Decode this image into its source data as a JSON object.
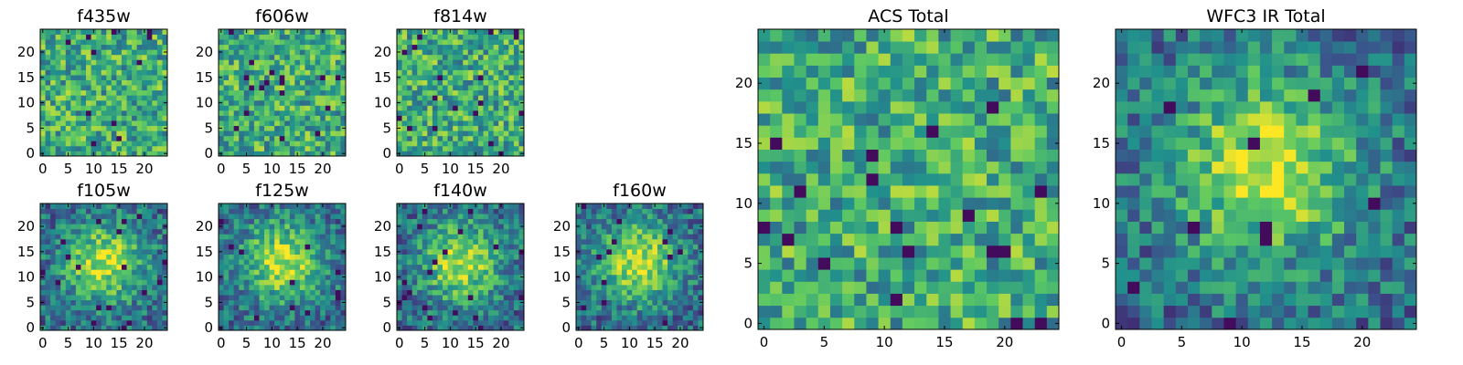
{
  "chart_data": [
    {
      "type": "heatmap",
      "title": "f435w",
      "grid": [
        25,
        25
      ],
      "seed": 11,
      "profile": "flat",
      "xlim": [
        0,
        24
      ],
      "ylim": [
        0,
        24
      ],
      "xticks": [
        "0",
        "5",
        "10",
        "15",
        "20"
      ],
      "yticks": [
        "0",
        "5",
        "10",
        "15",
        "20"
      ],
      "colormap": "viridis"
    },
    {
      "type": "heatmap",
      "title": "f606w",
      "grid": [
        25,
        25
      ],
      "seed": 23,
      "profile": "flat",
      "xlim": [
        0,
        24
      ],
      "ylim": [
        0,
        24
      ],
      "xticks": [
        "0",
        "5",
        "10",
        "15",
        "20"
      ],
      "yticks": [
        "0",
        "5",
        "10",
        "15",
        "20"
      ],
      "colormap": "viridis"
    },
    {
      "type": "heatmap",
      "title": "f814w",
      "grid": [
        25,
        25
      ],
      "seed": 37,
      "profile": "flat",
      "xlim": [
        0,
        24
      ],
      "ylim": [
        0,
        24
      ],
      "xticks": [
        "0",
        "5",
        "10",
        "15",
        "20"
      ],
      "yticks": [
        "0",
        "5",
        "10",
        "15",
        "20"
      ],
      "colormap": "viridis"
    },
    {
      "type": "heatmap",
      "title": "f105w",
      "grid": [
        25,
        25
      ],
      "seed": 41,
      "profile": "center",
      "xlim": [
        0,
        24
      ],
      "ylim": [
        0,
        24
      ],
      "xticks": [
        "0",
        "5",
        "10",
        "15",
        "20"
      ],
      "yticks": [
        "0",
        "5",
        "10",
        "15",
        "20"
      ],
      "colormap": "viridis"
    },
    {
      "type": "heatmap",
      "title": "f125w",
      "grid": [
        25,
        25
      ],
      "seed": 53,
      "profile": "center",
      "xlim": [
        0,
        24
      ],
      "ylim": [
        0,
        24
      ],
      "xticks": [
        "0",
        "5",
        "10",
        "15",
        "20"
      ],
      "yticks": [
        "0",
        "5",
        "10",
        "15",
        "20"
      ],
      "colormap": "viridis"
    },
    {
      "type": "heatmap",
      "title": "f140w",
      "grid": [
        25,
        25
      ],
      "seed": 67,
      "profile": "center",
      "xlim": [
        0,
        24
      ],
      "ylim": [
        0,
        24
      ],
      "xticks": [
        "0",
        "5",
        "10",
        "15",
        "20"
      ],
      "yticks": [
        "0",
        "5",
        "10",
        "15",
        "20"
      ],
      "colormap": "viridis"
    },
    {
      "type": "heatmap",
      "title": "f160w",
      "grid": [
        25,
        25
      ],
      "seed": 79,
      "profile": "center",
      "xlim": [
        0,
        24
      ],
      "ylim": [
        0,
        24
      ],
      "xticks": [
        "0",
        "5",
        "10",
        "15",
        "20"
      ],
      "yticks": [
        "0",
        "5",
        "10",
        "15",
        "20"
      ],
      "colormap": "viridis"
    },
    {
      "type": "heatmap",
      "title": "ACS Total",
      "grid": [
        25,
        25
      ],
      "seed": 83,
      "profile": "flat",
      "xlim": [
        0,
        24
      ],
      "ylim": [
        0,
        24
      ],
      "xticks": [
        "0",
        "5",
        "10",
        "15",
        "20"
      ],
      "yticks": [
        "0",
        "5",
        "10",
        "15",
        "20"
      ],
      "colormap": "viridis"
    },
    {
      "type": "heatmap",
      "title": "WFC3 IR Total",
      "grid": [
        25,
        25
      ],
      "seed": 97,
      "profile": "center",
      "xlim": [
        0,
        24
      ],
      "ylim": [
        0,
        24
      ],
      "xticks": [
        "0",
        "5",
        "10",
        "15",
        "20"
      ],
      "yticks": [
        "0",
        "5",
        "10",
        "15",
        "20"
      ],
      "colormap": "viridis"
    }
  ]
}
